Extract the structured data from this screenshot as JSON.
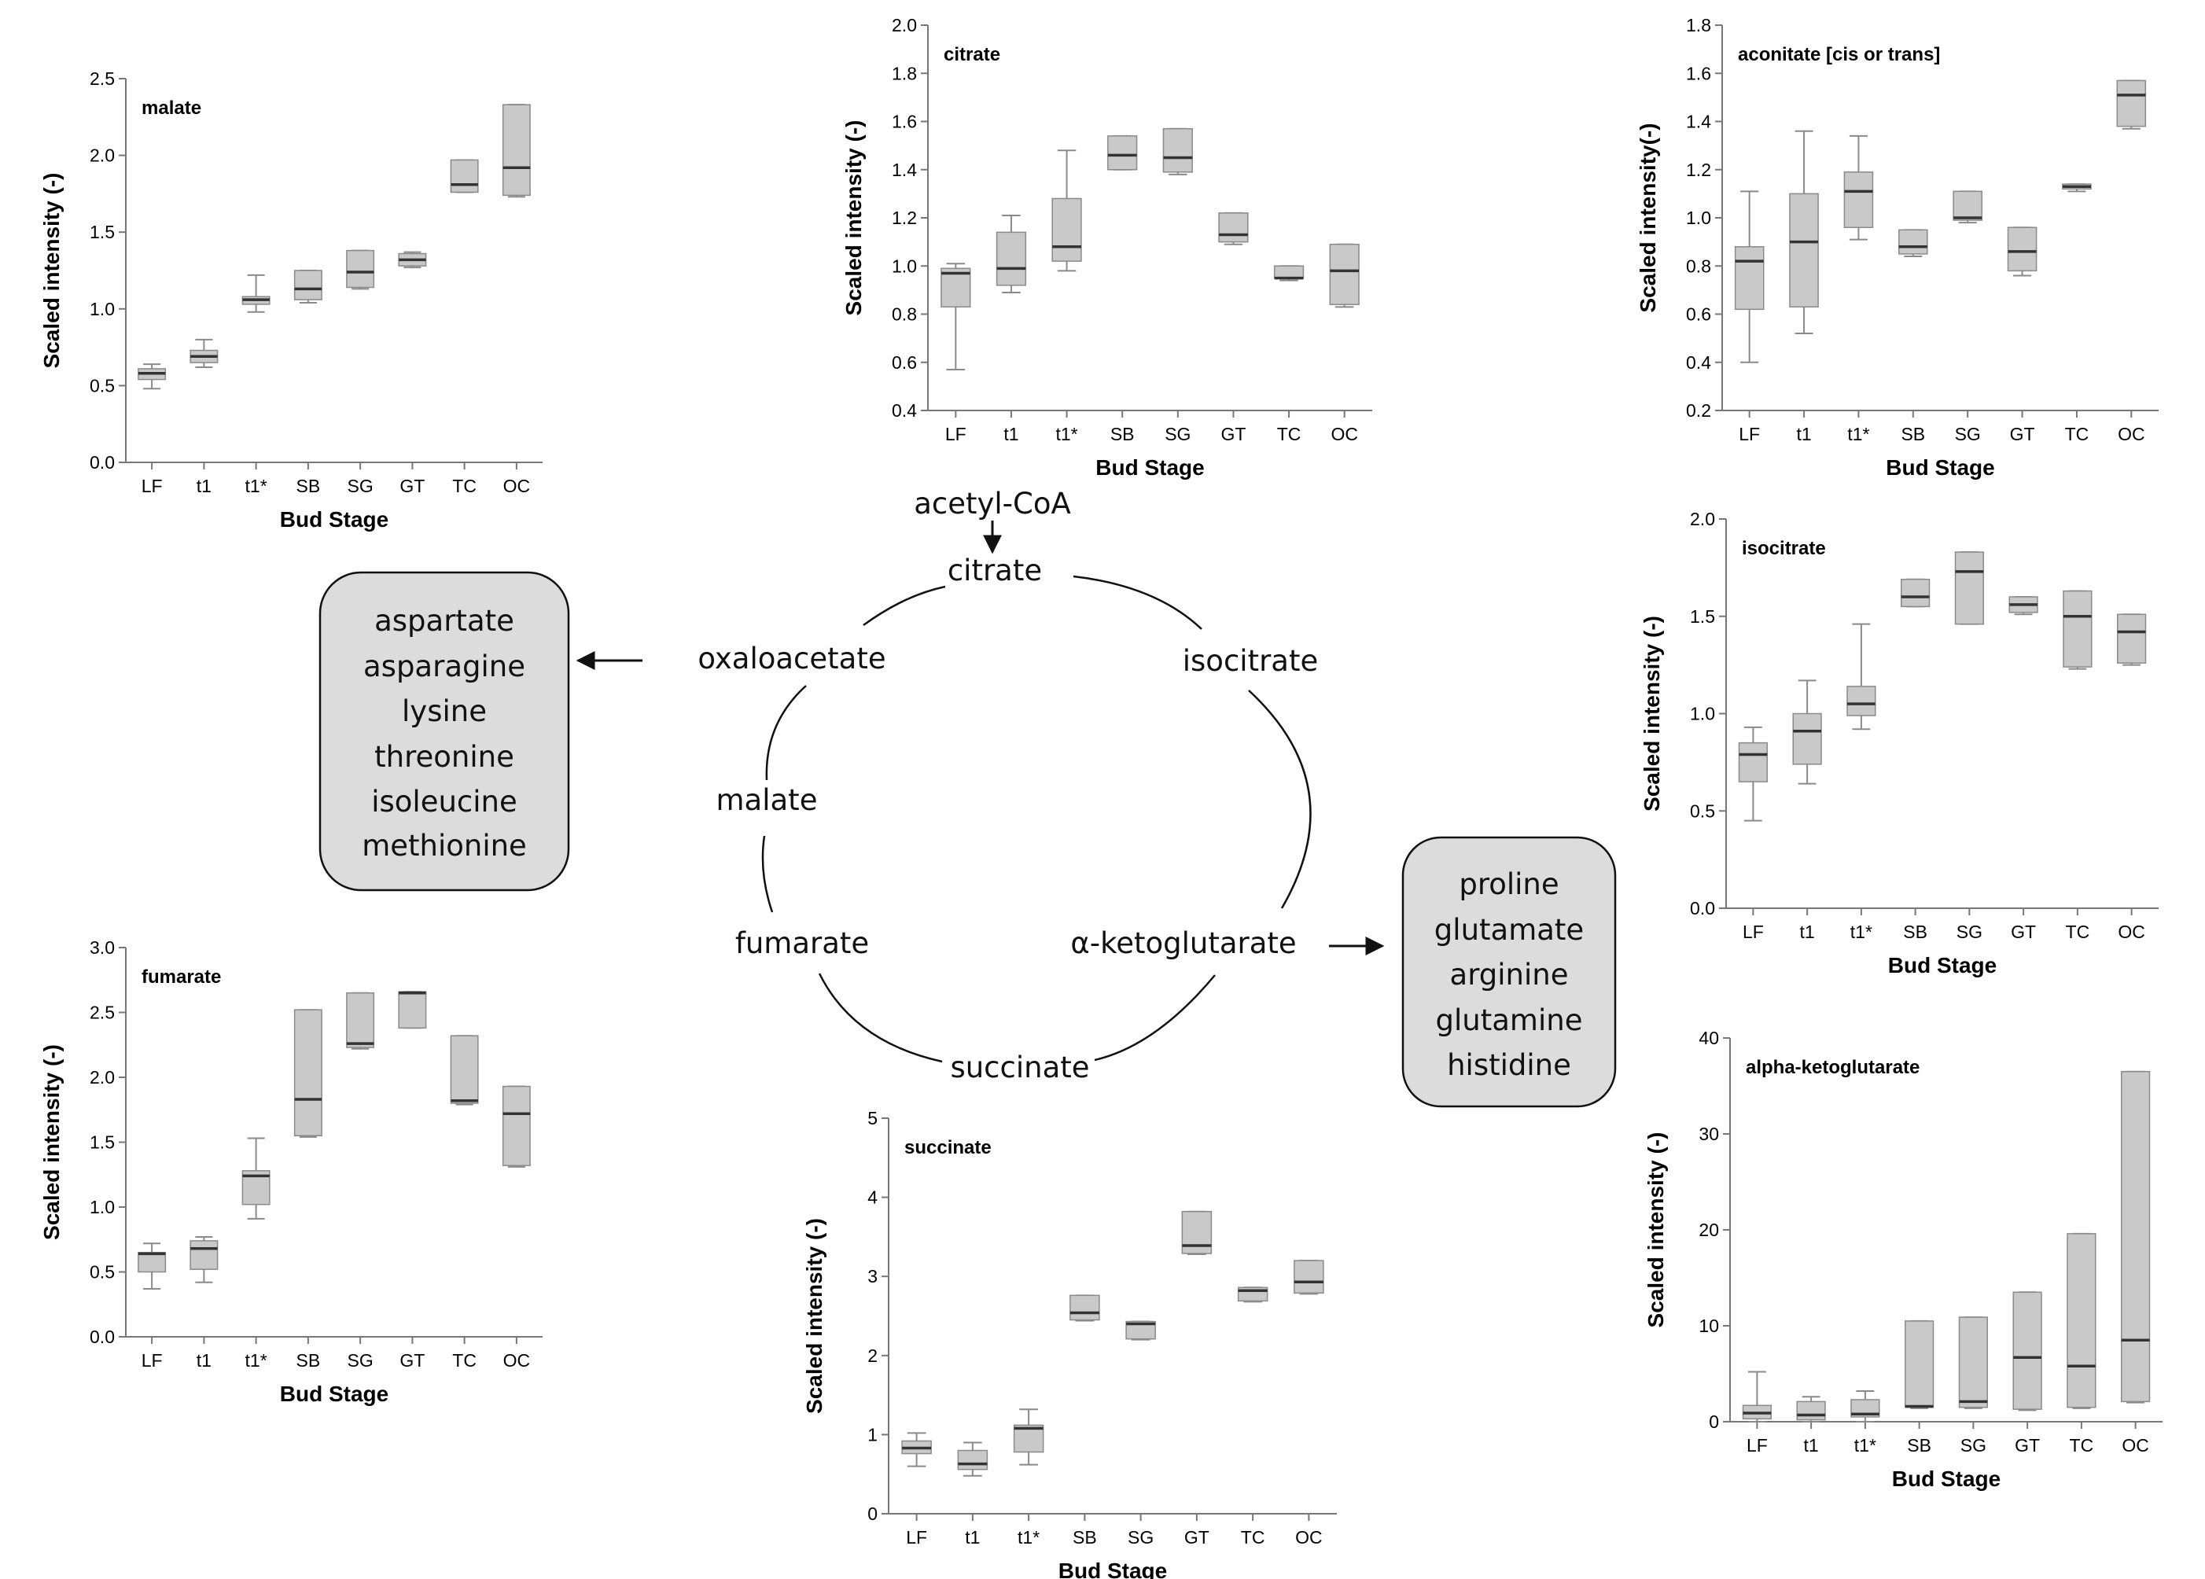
{
  "colors": {
    "box_fill": "#c9c9c9",
    "box_stroke": "#8a8a8a",
    "median": "#333333",
    "axis": "#777777",
    "group_fill": "#dcdcdc"
  },
  "cycle": {
    "entry": "acetyl-CoA",
    "nodes": {
      "citrate": "citrate",
      "isocitrate": "isocitrate",
      "akg": "α-ketoglutarate",
      "succinate": "succinate",
      "fumarate": "fumarate",
      "malate": "malate",
      "oxaloacetate": "oxaloacetate"
    }
  },
  "groups": {
    "oxaloacetate_products": [
      "aspartate",
      "asparagine",
      "lysine",
      "threonine",
      "isoleucine",
      "methionine"
    ],
    "akg_products": [
      "proline",
      "glutamate",
      "arginine",
      "glutamine",
      "histidine"
    ]
  },
  "chart_data": [
    {
      "id": "malate",
      "type": "boxplot",
      "title": "malate",
      "xlabel": "Bud Stage",
      "ylabel": "Scaled intensity (-)",
      "categories": [
        "LF",
        "t1",
        "t1*",
        "SB",
        "SG",
        "GT",
        "TC",
        "OC"
      ],
      "ylim": [
        0,
        2.5
      ],
      "yticks": [
        "0.0",
        "0.5",
        "1.0",
        "1.5",
        "2.0",
        "2.5"
      ],
      "boxes": [
        {
          "min": 0.48,
          "q1": 0.54,
          "median": 0.58,
          "q3": 0.61,
          "max": 0.64
        },
        {
          "min": 0.62,
          "q1": 0.65,
          "median": 0.69,
          "q3": 0.73,
          "max": 0.8
        },
        {
          "min": 0.98,
          "q1": 1.03,
          "median": 1.06,
          "q3": 1.08,
          "max": 1.22
        },
        {
          "min": 1.04,
          "q1": 1.06,
          "median": 1.13,
          "q3": 1.25,
          "max": 1.25
        },
        {
          "min": 1.13,
          "q1": 1.14,
          "median": 1.24,
          "q3": 1.38,
          "max": 1.38
        },
        {
          "min": 1.27,
          "q1": 1.28,
          "median": 1.32,
          "q3": 1.36,
          "max": 1.37
        },
        {
          "min": 1.76,
          "q1": 1.76,
          "median": 1.81,
          "q3": 1.97,
          "max": 1.97
        },
        {
          "min": 1.73,
          "q1": 1.74,
          "median": 1.92,
          "q3": 2.33,
          "max": 2.33
        }
      ]
    },
    {
      "id": "citrate",
      "type": "boxplot",
      "title": "citrate",
      "xlabel": "Bud Stage",
      "ylabel": "Scaled intensity (-)",
      "categories": [
        "LF",
        "t1",
        "t1*",
        "SB",
        "SG",
        "GT",
        "TC",
        "OC"
      ],
      "ylim": [
        0.4,
        2.0
      ],
      "yticks": [
        "0.4",
        "0.6",
        "0.8",
        "1.0",
        "1.2",
        "1.4",
        "1.6",
        "1.8",
        "2.0"
      ],
      "boxes": [
        {
          "min": 0.57,
          "q1": 0.83,
          "median": 0.97,
          "q3": 0.99,
          "max": 1.01
        },
        {
          "min": 0.89,
          "q1": 0.92,
          "median": 0.99,
          "q3": 1.14,
          "max": 1.21
        },
        {
          "min": 0.98,
          "q1": 1.02,
          "median": 1.08,
          "q3": 1.28,
          "max": 1.48
        },
        {
          "min": 1.4,
          "q1": 1.4,
          "median": 1.46,
          "q3": 1.54,
          "max": 1.54
        },
        {
          "min": 1.38,
          "q1": 1.39,
          "median": 1.45,
          "q3": 1.57,
          "max": 1.57
        },
        {
          "min": 1.09,
          "q1": 1.1,
          "median": 1.13,
          "q3": 1.22,
          "max": 1.22
        },
        {
          "min": 0.94,
          "q1": 0.95,
          "median": 0.95,
          "q3": 1.0,
          "max": 1.0
        },
        {
          "min": 0.83,
          "q1": 0.84,
          "median": 0.98,
          "q3": 1.09,
          "max": 1.09
        }
      ]
    },
    {
      "id": "aconitate",
      "type": "boxplot",
      "title": "aconitate [cis or trans]",
      "xlabel": "Bud Stage",
      "ylabel": "Scaled intensity(-)",
      "categories": [
        "LF",
        "t1",
        "t1*",
        "SB",
        "SG",
        "GT",
        "TC",
        "OC"
      ],
      "ylim": [
        0.2,
        1.8
      ],
      "yticks": [
        "0.2",
        "0.4",
        "0.6",
        "0.8",
        "1.0",
        "1.2",
        "1.4",
        "1.6",
        "1.8"
      ],
      "boxes": [
        {
          "min": 0.4,
          "q1": 0.62,
          "median": 0.82,
          "q3": 0.88,
          "max": 1.11
        },
        {
          "min": 0.52,
          "q1": 0.63,
          "median": 0.9,
          "q3": 1.1,
          "max": 1.36
        },
        {
          "min": 0.91,
          "q1": 0.96,
          "median": 1.11,
          "q3": 1.19,
          "max": 1.34
        },
        {
          "min": 0.84,
          "q1": 0.85,
          "median": 0.88,
          "q3": 0.95,
          "max": 0.95
        },
        {
          "min": 0.98,
          "q1": 0.99,
          "median": 1.0,
          "q3": 1.11,
          "max": 1.11
        },
        {
          "min": 0.76,
          "q1": 0.78,
          "median": 0.86,
          "q3": 0.96,
          "max": 0.96
        },
        {
          "min": 1.11,
          "q1": 1.12,
          "median": 1.13,
          "q3": 1.14,
          "max": 1.14
        },
        {
          "min": 1.37,
          "q1": 1.38,
          "median": 1.51,
          "q3": 1.57,
          "max": 1.57
        }
      ]
    },
    {
      "id": "isocitrate",
      "type": "boxplot",
      "title": "isocitrate",
      "xlabel": "Bud Stage",
      "ylabel": "Scaled intensity (-)",
      "categories": [
        "LF",
        "t1",
        "t1*",
        "SB",
        "SG",
        "GT",
        "TC",
        "OC"
      ],
      "ylim": [
        0,
        2.0
      ],
      "yticks": [
        "0.0",
        "0.5",
        "1.0",
        "1.5",
        "2.0"
      ],
      "boxes": [
        {
          "min": 0.45,
          "q1": 0.65,
          "median": 0.79,
          "q3": 0.85,
          "max": 0.93
        },
        {
          "min": 0.64,
          "q1": 0.74,
          "median": 0.91,
          "q3": 1.0,
          "max": 1.17
        },
        {
          "min": 0.92,
          "q1": 0.99,
          "median": 1.05,
          "q3": 1.14,
          "max": 1.46
        },
        {
          "min": 1.55,
          "q1": 1.55,
          "median": 1.6,
          "q3": 1.69,
          "max": 1.69
        },
        {
          "min": 1.46,
          "q1": 1.46,
          "median": 1.73,
          "q3": 1.83,
          "max": 1.83
        },
        {
          "min": 1.51,
          "q1": 1.52,
          "median": 1.56,
          "q3": 1.6,
          "max": 1.6
        },
        {
          "min": 1.23,
          "q1": 1.24,
          "median": 1.5,
          "q3": 1.63,
          "max": 1.63
        },
        {
          "min": 1.25,
          "q1": 1.26,
          "median": 1.42,
          "q3": 1.51,
          "max": 1.51
        }
      ]
    },
    {
      "id": "fumarate",
      "type": "boxplot",
      "title": "fumarate",
      "xlabel": "Bud Stage",
      "ylabel": "Scaled intensity (-)",
      "categories": [
        "LF",
        "t1",
        "t1*",
        "SB",
        "SG",
        "GT",
        "TC",
        "OC"
      ],
      "ylim": [
        0,
        3.0
      ],
      "yticks": [
        "0.0",
        "0.5",
        "1.0",
        "1.5",
        "2.0",
        "2.5",
        "3.0"
      ],
      "boxes": [
        {
          "min": 0.37,
          "q1": 0.5,
          "median": 0.64,
          "q3": 0.65,
          "max": 0.72
        },
        {
          "min": 0.42,
          "q1": 0.52,
          "median": 0.68,
          "q3": 0.74,
          "max": 0.77
        },
        {
          "min": 0.91,
          "q1": 1.02,
          "median": 1.24,
          "q3": 1.28,
          "max": 1.53
        },
        {
          "min": 1.54,
          "q1": 1.55,
          "median": 1.83,
          "q3": 2.52,
          "max": 2.52
        },
        {
          "min": 2.22,
          "q1": 2.23,
          "median": 2.26,
          "q3": 2.65,
          "max": 2.65
        },
        {
          "min": 2.38,
          "q1": 2.38,
          "median": 2.65,
          "q3": 2.66,
          "max": 2.66
        },
        {
          "min": 1.79,
          "q1": 1.8,
          "median": 1.82,
          "q3": 2.32,
          "max": 2.32
        },
        {
          "min": 1.31,
          "q1": 1.32,
          "median": 1.72,
          "q3": 1.93,
          "max": 1.93
        }
      ]
    },
    {
      "id": "succinate",
      "type": "boxplot",
      "title": "succinate",
      "xlabel": "Bud Stage",
      "ylabel": "Scaled intensity (-)",
      "categories": [
        "LF",
        "t1",
        "t1*",
        "SB",
        "SG",
        "GT",
        "TC",
        "OC"
      ],
      "ylim": [
        0,
        5
      ],
      "yticks": [
        "0",
        "1",
        "2",
        "3",
        "4",
        "5"
      ],
      "boxes": [
        {
          "min": 0.6,
          "q1": 0.76,
          "median": 0.83,
          "q3": 0.92,
          "max": 1.02
        },
        {
          "min": 0.48,
          "q1": 0.56,
          "median": 0.63,
          "q3": 0.8,
          "max": 0.9
        },
        {
          "min": 0.62,
          "q1": 0.78,
          "median": 1.08,
          "q3": 1.12,
          "max": 1.32
        },
        {
          "min": 2.44,
          "q1": 2.45,
          "median": 2.54,
          "q3": 2.76,
          "max": 2.76
        },
        {
          "min": 2.2,
          "q1": 2.21,
          "median": 2.4,
          "q3": 2.43,
          "max": 2.43
        },
        {
          "min": 3.28,
          "q1": 3.29,
          "median": 3.39,
          "q3": 3.82,
          "max": 3.82
        },
        {
          "min": 2.68,
          "q1": 2.69,
          "median": 2.82,
          "q3": 2.86,
          "max": 2.86
        },
        {
          "min": 2.78,
          "q1": 2.79,
          "median": 2.93,
          "q3": 3.2,
          "max": 3.2
        }
      ]
    },
    {
      "id": "akg",
      "type": "boxplot",
      "title": "alpha-ketoglutarate",
      "xlabel": "Bud Stage",
      "ylabel": "Scaled intensity (-)",
      "categories": [
        "LF",
        "t1",
        "t1*",
        "SB",
        "SG",
        "GT",
        "TC",
        "OC"
      ],
      "ylim": [
        0,
        40
      ],
      "yticks": [
        "0",
        "10",
        "20",
        "30",
        "40"
      ],
      "boxes": [
        {
          "min": 0.0,
          "q1": 0.3,
          "median": 0.9,
          "q3": 1.7,
          "max": 5.2
        },
        {
          "min": 0.0,
          "q1": 0.2,
          "median": 0.7,
          "q3": 2.1,
          "max": 2.6
        },
        {
          "min": 0.0,
          "q1": 0.5,
          "median": 0.8,
          "q3": 2.3,
          "max": 3.2
        },
        {
          "min": 1.4,
          "q1": 1.5,
          "median": 1.6,
          "q3": 10.5,
          "max": 10.5
        },
        {
          "min": 1.4,
          "q1": 1.5,
          "median": 2.1,
          "q3": 10.9,
          "max": 10.9
        },
        {
          "min": 1.2,
          "q1": 1.3,
          "median": 6.7,
          "q3": 13.5,
          "max": 13.5
        },
        {
          "min": 1.4,
          "q1": 1.5,
          "median": 5.8,
          "q3": 19.6,
          "max": 19.6
        },
        {
          "min": 2.0,
          "q1": 2.1,
          "median": 8.5,
          "q3": 36.5,
          "max": 36.5
        }
      ]
    }
  ]
}
